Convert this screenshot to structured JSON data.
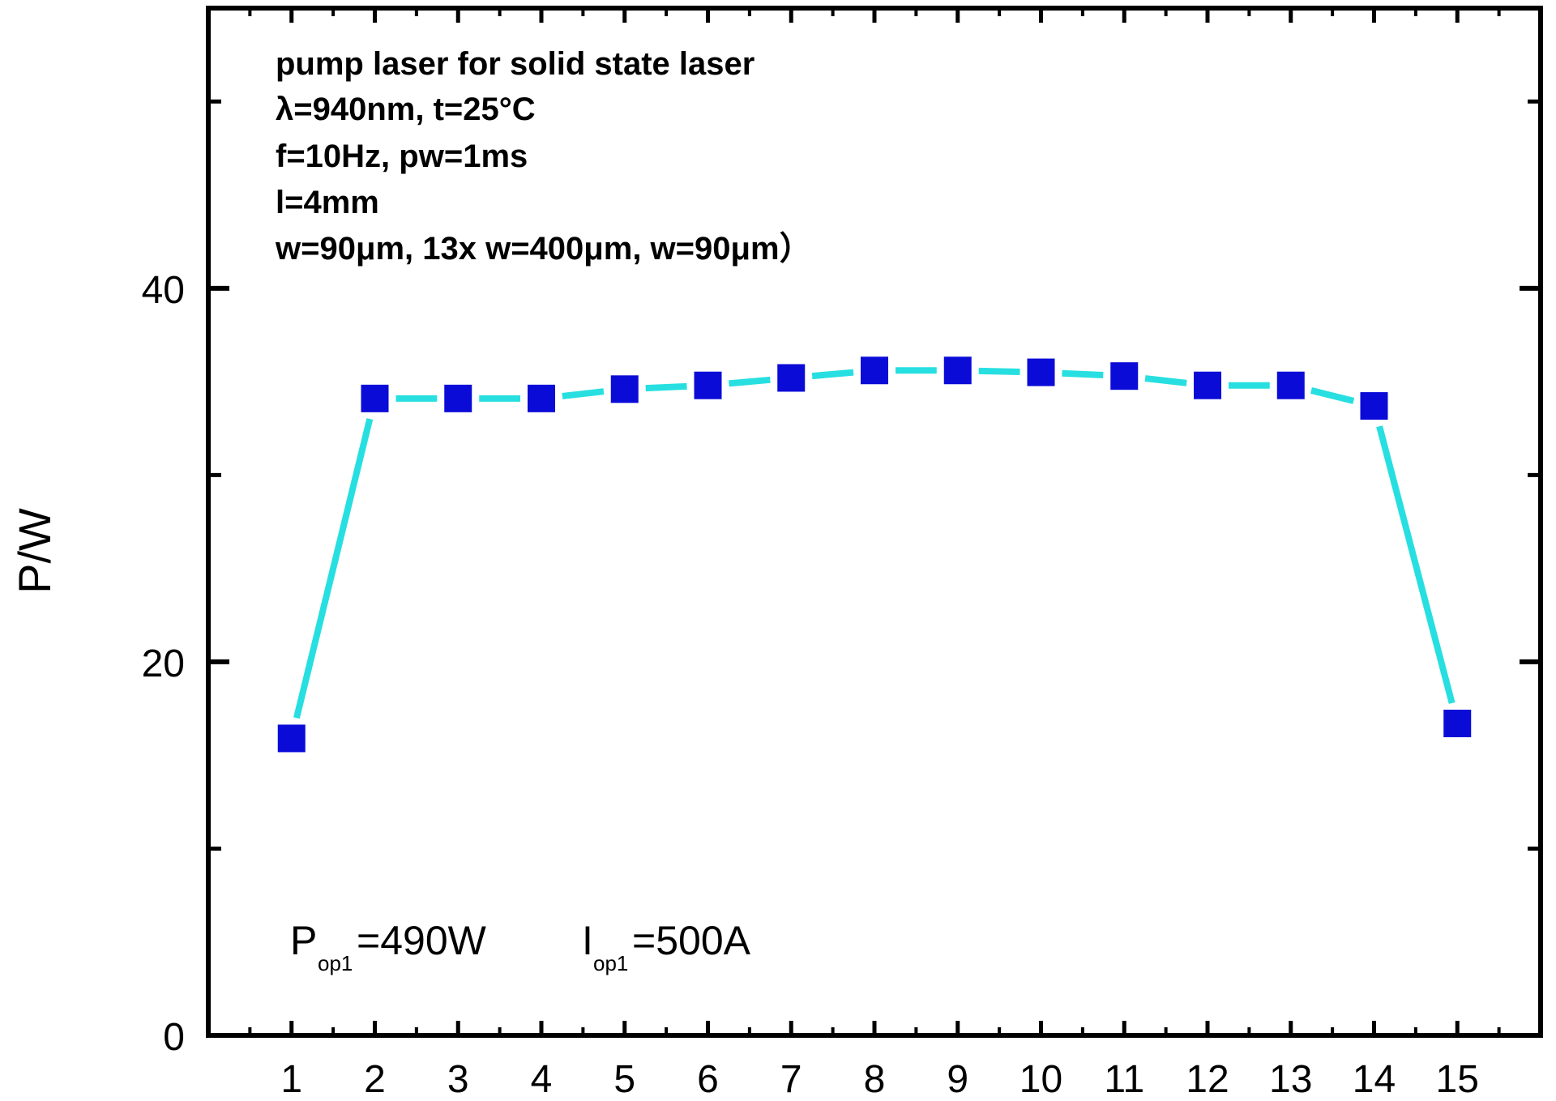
{
  "chart_data": {
    "type": "line",
    "title": "",
    "xlabel": "",
    "ylabel": "P/W",
    "xlim": [
      0,
      16
    ],
    "ylim": [
      0,
      55
    ],
    "x_ticks": [
      "1",
      "2",
      "3",
      "4",
      "5",
      "6",
      "7",
      "8",
      "9",
      "10",
      "11",
      "12",
      "13",
      "14",
      "15"
    ],
    "y_ticks": [
      "0",
      "20",
      "40"
    ],
    "y_tick_values": [
      0,
      20,
      40
    ],
    "y_minor_tick_values": [
      10,
      30,
      50
    ],
    "grid": false,
    "series": [
      {
        "x": [
          1,
          2,
          3,
          4,
          5,
          6,
          7,
          8,
          9,
          10,
          11,
          12,
          13,
          14,
          15
        ],
        "values": [
          15.9,
          34.1,
          34.1,
          34.1,
          34.6,
          34.8,
          35.2,
          35.6,
          35.6,
          35.5,
          35.3,
          34.8,
          34.8,
          33.7,
          16.7
        ],
        "line_color": "#27dfe0",
        "marker_color": "#0b0bd8",
        "marker": "square"
      }
    ],
    "annotations": {
      "lines": [
        "pump laser for solid state laser",
        "λ=940nm, t=25°C",
        "f=10Hz, pw=1ms",
        "l=4mm",
        "w=90μm, 13x w=400μm, w=90μm）"
      ],
      "p_op_main": "P",
      "p_op_sub": "op1",
      "p_op_value": "=490W",
      "i_op_main": "I",
      "i_op_sub": "op1",
      "i_op_value": "=500A"
    }
  }
}
